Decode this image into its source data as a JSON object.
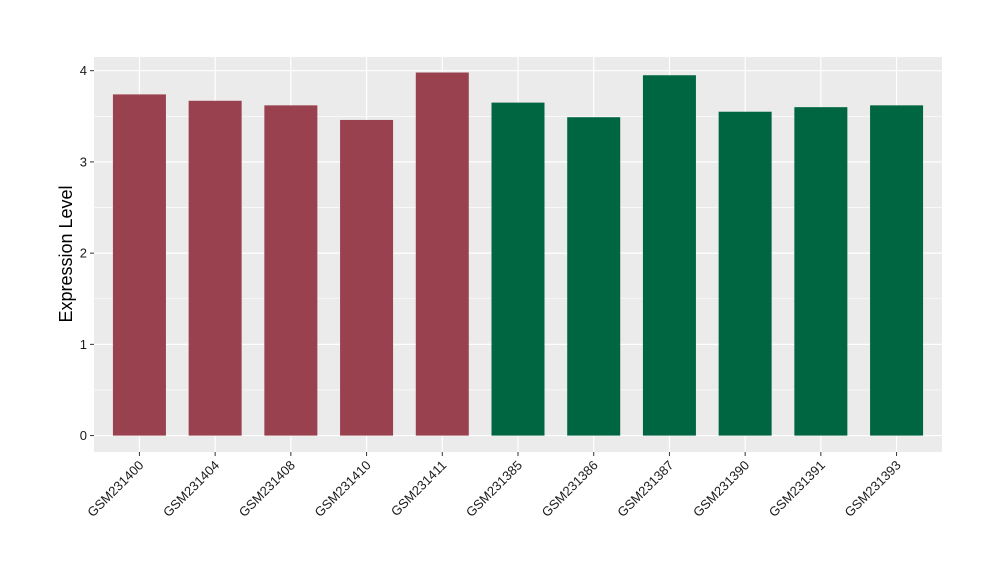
{
  "chart_data": {
    "type": "bar",
    "ylabel": "Expression Level",
    "xlabel": "",
    "categories": [
      "GSM231400",
      "GSM231404",
      "GSM231408",
      "GSM231410",
      "GSM231411",
      "GSM231385",
      "GSM231386",
      "GSM231387",
      "GSM231390",
      "GSM231391",
      "GSM231393"
    ],
    "values": [
      3.74,
      3.67,
      3.62,
      3.46,
      3.98,
      3.65,
      3.49,
      3.95,
      3.55,
      3.6,
      3.62
    ],
    "bar_colors": [
      "#99414E",
      "#99414E",
      "#99414E",
      "#99414E",
      "#99414E",
      "#006641",
      "#006641",
      "#006641",
      "#006641",
      "#006641",
      "#006641"
    ],
    "ylim": [
      -0.18,
      4.15
    ],
    "yticks": [
      0,
      1,
      2,
      3,
      4
    ],
    "grid": true,
    "legend": "none",
    "panel_background": "#EBEBEB",
    "gridline_color": "#FFFFFF"
  }
}
